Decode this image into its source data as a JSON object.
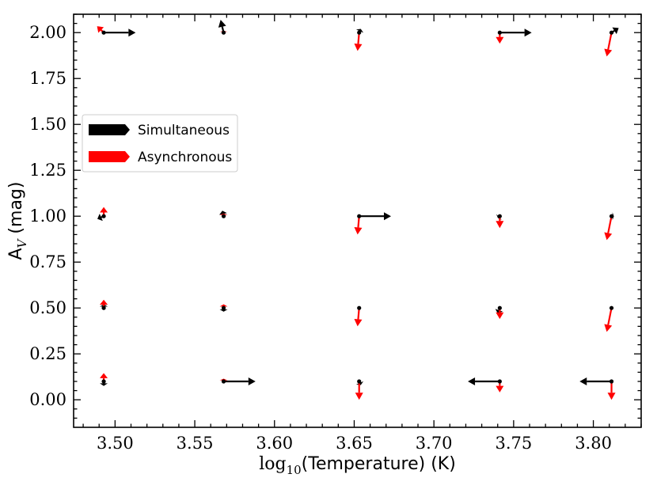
{
  "chart_data": {
    "type": "scatter",
    "xlabel": {
      "prefix": "log",
      "sub": "10",
      "rest": "(Temperature) (K)"
    },
    "ylabel": {
      "prefix": "A",
      "sub": "V",
      "rest": " (mag)"
    },
    "xlim": [
      3.474,
      3.83
    ],
    "ylim": [
      -0.15,
      2.1
    ],
    "xticks": [
      3.5,
      3.55,
      3.6,
      3.65,
      3.7,
      3.75,
      3.8
    ],
    "xtick_labels": [
      "3.50",
      "3.55",
      "3.60",
      "3.65",
      "3.70",
      "3.75",
      "3.80"
    ],
    "yticks": [
      0.0,
      0.25,
      0.5,
      0.75,
      1.0,
      1.25,
      1.5,
      1.75,
      2.0
    ],
    "ytick_labels": [
      "0.00",
      "0.25",
      "0.50",
      "0.75",
      "1.00",
      "1.25",
      "1.50",
      "1.75",
      "2.00"
    ],
    "grid": false,
    "legend_position": "center-left",
    "colors": {
      "simultaneous": "#000000",
      "asynchronous": "#ff0000"
    },
    "series": [
      {
        "name": "Simultaneous",
        "color": "#000000",
        "points": [
          {
            "x": 3.4929,
            "y": 2.0,
            "dx": 0.02,
            "dy": 0.0
          },
          {
            "x": 3.5681,
            "y": 2.0,
            "dx": -0.0019,
            "dy": 0.07
          },
          {
            "x": 3.6531,
            "y": 2.0,
            "dx": 0.001,
            "dy": 0.02
          },
          {
            "x": 3.7413,
            "y": 2.0,
            "dx": 0.02,
            "dy": 0.0
          },
          {
            "x": 3.8114,
            "y": 2.0,
            "dx": 0.0045,
            "dy": 0.025
          },
          {
            "x": 3.4929,
            "y": 1.0,
            "dx": -0.004,
            "dy": -0.015
          },
          {
            "x": 3.5681,
            "y": 1.0,
            "dx": -0.0008,
            "dy": 0.03
          },
          {
            "x": 3.6531,
            "y": 1.0,
            "dx": 0.02,
            "dy": 0.0
          },
          {
            "x": 3.7413,
            "y": 1.0,
            "dx": -0.0012,
            "dy": -0.01
          },
          {
            "x": 3.8114,
            "y": 1.0,
            "dx": 0.0015,
            "dy": 0.0
          },
          {
            "x": 3.4929,
            "y": 0.5,
            "dx": 0.0,
            "dy": 0.02
          },
          {
            "x": 3.5681,
            "y": 0.5,
            "dx": 0.0,
            "dy": -0.02
          },
          {
            "x": 3.7413,
            "y": 0.5,
            "dx": -0.0012,
            "dy": -0.03
          },
          {
            "x": 3.4929,
            "y": 0.1,
            "dx": 0.0,
            "dy": -0.025
          },
          {
            "x": 3.5681,
            "y": 0.1,
            "dx": 0.02,
            "dy": 0.0
          },
          {
            "x": 3.6531,
            "y": 0.1,
            "dx": 0.001,
            "dy": -0.02
          },
          {
            "x": 3.7413,
            "y": 0.1,
            "dx": -0.02,
            "dy": 0.0
          },
          {
            "x": 3.8114,
            "y": 0.1,
            "dx": -0.02,
            "dy": 0.0
          }
        ]
      },
      {
        "name": "Asynchronous",
        "color": "#ff0000",
        "points": [
          {
            "x": 3.4929,
            "y": 2.0,
            "dx": -0.0042,
            "dy": 0.035
          },
          {
            "x": 3.5681,
            "y": 2.0,
            "dx": 0.0,
            "dy": 0.01
          },
          {
            "x": 3.6531,
            "y": 2.0,
            "dx": -0.001,
            "dy": -0.1
          },
          {
            "x": 3.7413,
            "y": 2.0,
            "dx": 0.0,
            "dy": -0.06
          },
          {
            "x": 3.8114,
            "y": 2.0,
            "dx": -0.003,
            "dy": -0.13
          },
          {
            "x": 3.4929,
            "y": 1.0,
            "dx": 0.0,
            "dy": 0.05
          },
          {
            "x": 3.5681,
            "y": 1.0,
            "dx": 0.0,
            "dy": 0.015
          },
          {
            "x": 3.6531,
            "y": 1.0,
            "dx": -0.001,
            "dy": -0.1
          },
          {
            "x": 3.7413,
            "y": 1.0,
            "dx": 0.0,
            "dy": -0.065
          },
          {
            "x": 3.8114,
            "y": 1.0,
            "dx": -0.003,
            "dy": -0.13
          },
          {
            "x": 3.4929,
            "y": 0.5,
            "dx": 0.0,
            "dy": 0.045
          },
          {
            "x": 3.5681,
            "y": 0.5,
            "dx": 0.0,
            "dy": 0.02
          },
          {
            "x": 3.6531,
            "y": 0.5,
            "dx": -0.001,
            "dy": -0.1
          },
          {
            "x": 3.7413,
            "y": 0.5,
            "dx": 0.0,
            "dy": -0.06
          },
          {
            "x": 3.8114,
            "y": 0.5,
            "dx": -0.003,
            "dy": -0.13
          },
          {
            "x": 3.4929,
            "y": 0.1,
            "dx": 0.0,
            "dy": 0.045
          },
          {
            "x": 3.5681,
            "y": 0.1,
            "dx": 0.0,
            "dy": 0.015
          },
          {
            "x": 3.6531,
            "y": 0.1,
            "dx": 0.0,
            "dy": -0.1
          },
          {
            "x": 3.7413,
            "y": 0.1,
            "dx": 0.0,
            "dy": -0.06
          },
          {
            "x": 3.8114,
            "y": 0.1,
            "dx": 0.0,
            "dy": -0.1
          }
        ]
      }
    ],
    "legend": [
      {
        "label": "Simultaneous",
        "color": "#000000"
      },
      {
        "label": "Asynchronous",
        "color": "#ff0000"
      }
    ]
  }
}
